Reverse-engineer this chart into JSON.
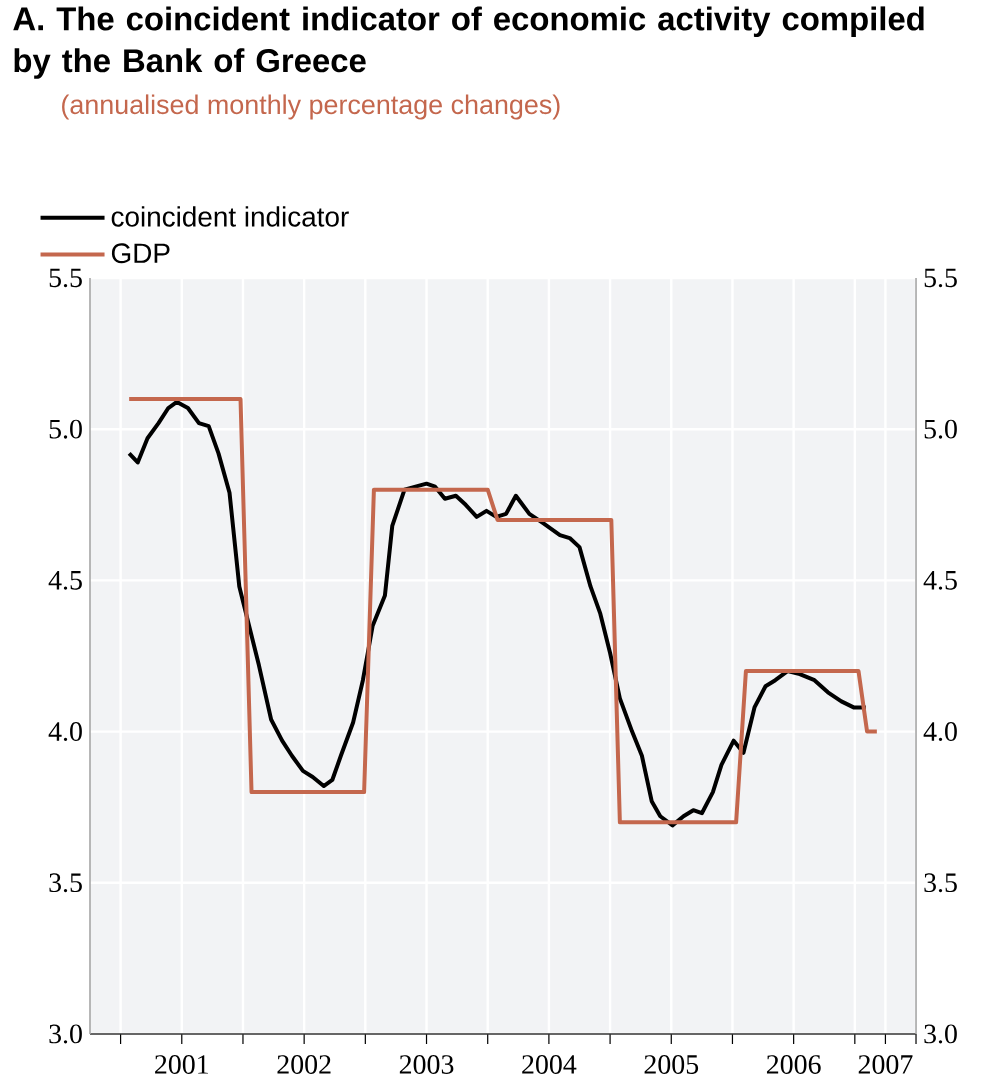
{
  "chart_data": {
    "type": "line",
    "title": "A.  The coincident indicator of economic activity compiled by the Bank of Greece",
    "subtitle": "(annualised monthly percentage changes)",
    "xlim": [
      2000.75,
      2007.5
    ],
    "xticks": [
      {
        "value": 2001,
        "label": null
      },
      {
        "value": 2001.5,
        "label": "2001"
      },
      {
        "value": 2002,
        "label": null
      },
      {
        "value": 2002.5,
        "label": "2002"
      },
      {
        "value": 2003,
        "label": null
      },
      {
        "value": 2003.5,
        "label": "2003"
      },
      {
        "value": 2004,
        "label": null
      },
      {
        "value": 2004.5,
        "label": "2004"
      },
      {
        "value": 2005,
        "label": null
      },
      {
        "value": 2005.5,
        "label": "2005"
      },
      {
        "value": 2006,
        "label": null
      },
      {
        "value": 2006.5,
        "label": "2006"
      },
      {
        "value": 2007,
        "label": null
      },
      {
        "value": 2007.25,
        "label": "2007"
      },
      {
        "value": 2007.5,
        "label": null
      }
    ],
    "ylim": [
      3,
      5.5
    ],
    "yticks": [
      {
        "value": 3,
        "label": "3.0"
      },
      3.5,
      {
        "value": 4,
        "label": "4.0"
      },
      4.5,
      {
        "value": 5,
        "label": "5.0"
      },
      5.5
    ],
    "y2lim": [
      3,
      5.5
    ],
    "y2ticks": [
      {
        "value": 3,
        "label": "3.0"
      },
      3.5,
      {
        "value": 4,
        "label": "4.0"
      },
      4.5,
      {
        "value": 5,
        "label": "5.0"
      },
      5.5
    ],
    "grid": true,
    "legend": "top left",
    "marker": "none",
    "line_style": "solid",
    "series": [
      {
        "name": "coincident indicator",
        "color": "#000000",
        "x": [
          2001.07,
          2001.14,
          2001.22,
          2001.31,
          2001.39,
          2001.46,
          2001.55,
          2001.64,
          2001.72,
          2001.8,
          2001.89,
          2001.97,
          2002.05,
          2002.13,
          2002.23,
          2002.32,
          2002.4,
          2002.49,
          2002.57,
          2002.66,
          2002.73,
          2002.8,
          2002.9,
          2002.98,
          2003.06,
          2003.16,
          2003.22,
          2003.32,
          2003.41,
          2003.5,
          2003.57,
          2003.65,
          2003.74,
          2003.82,
          2003.91,
          2003.99,
          2004.07,
          2004.15,
          2004.23,
          2004.34,
          2004.45,
          2004.59,
          2004.67,
          2004.75,
          2004.84,
          2004.92,
          2005.0,
          2005.08,
          2005.18,
          2005.26,
          2005.34,
          2005.41,
          2005.51,
          2005.6,
          2005.68,
          2005.75,
          2005.84,
          2005.91,
          2006.01,
          2006.09,
          2006.18,
          2006.27,
          2006.35,
          2006.45,
          2006.55,
          2006.67,
          2006.78,
          2006.89,
          2006.99,
          2007.09
        ],
        "values": [
          4.92,
          4.89,
          4.97,
          5.02,
          5.07,
          5.09,
          5.07,
          5.02,
          5.01,
          4.92,
          4.79,
          4.48,
          4.35,
          4.22,
          4.04,
          3.97,
          3.92,
          3.87,
          3.85,
          3.82,
          3.84,
          3.92,
          4.03,
          4.17,
          4.35,
          4.45,
          4.68,
          4.8,
          4.81,
          4.82,
          4.81,
          4.77,
          4.78,
          4.75,
          4.71,
          4.73,
          4.71,
          4.72,
          4.78,
          4.72,
          4.69,
          4.65,
          4.64,
          4.61,
          4.48,
          4.39,
          4.26,
          4.11,
          4.0,
          3.92,
          3.77,
          3.72,
          3.69,
          3.72,
          3.74,
          3.73,
          3.8,
          3.89,
          3.97,
          3.93,
          4.08,
          4.15,
          4.17,
          4.2,
          4.19,
          4.17,
          4.13,
          4.1,
          4.08,
          4.08
        ]
      },
      {
        "name": "GDP",
        "color": "#c4674d",
        "x": [
          2001.07,
          2001.98,
          2002.07,
          2002.99,
          2003.07,
          2004.0,
          2004.08,
          2005.01,
          2005.08,
          2006.03,
          2006.11,
          2007.03,
          2007.1,
          2007.18
        ],
        "values": [
          5.1,
          5.1,
          3.8,
          3.8,
          4.8,
          4.8,
          4.7,
          4.7,
          3.7,
          3.7,
          4.2,
          4.2,
          4.0,
          4.0
        ]
      }
    ]
  }
}
